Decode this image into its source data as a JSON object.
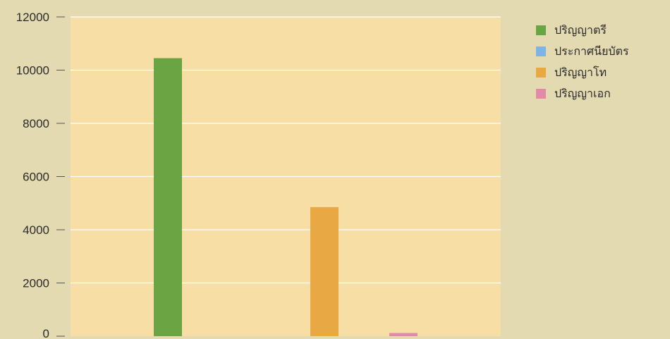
{
  "chart_data": {
    "type": "bar",
    "title": "",
    "xlabel": "",
    "ylabel": "",
    "ylim": [
      0,
      12000
    ],
    "yticks": [
      0,
      2000,
      4000,
      6000,
      8000,
      10000,
      12000
    ],
    "grid": true,
    "legend_position": "top-right",
    "series": [
      {
        "name": "ปริญญาตรี",
        "value": 10450,
        "color": "#6aa443"
      },
      {
        "name": "ประกาศนียบัตร",
        "value": 0,
        "color": "#7eb3e6"
      },
      {
        "name": "ปริญญาโท",
        "value": 4850,
        "color": "#e8a844"
      },
      {
        "name": "ปริญญาเอก",
        "value": 120,
        "color": "#e48aa8"
      }
    ],
    "plot_background": "#f6dea5",
    "gridline_color": "#ffffff"
  }
}
